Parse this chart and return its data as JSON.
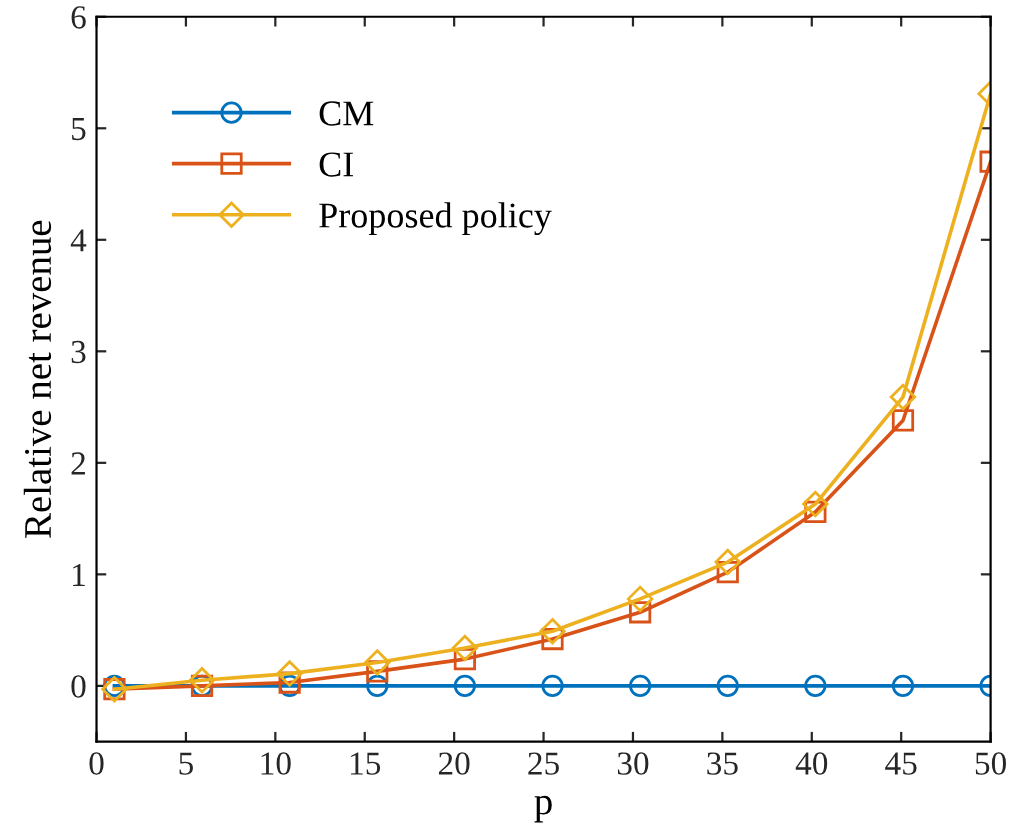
{
  "chart_data": {
    "type": "line",
    "xlabel": "p",
    "ylabel": "Relative net revenue",
    "x": [
      1,
      5.9,
      10.8,
      15.7,
      20.6,
      25.5,
      30.4,
      35.3,
      40.2,
      45.1,
      50
    ],
    "series": [
      {
        "name": "CM",
        "color": "#0072bd",
        "marker": "circle",
        "values": [
          0,
          0,
          0,
          0,
          0,
          0,
          0,
          0,
          0,
          0,
          0
        ]
      },
      {
        "name": "CI",
        "color": "#d95319",
        "marker": "square",
        "values": [
          -0.03,
          0.0,
          0.03,
          0.13,
          0.24,
          0.42,
          0.66,
          1.02,
          1.56,
          2.38,
          4.7
        ]
      },
      {
        "name": "Proposed policy",
        "color": "#edb120",
        "marker": "diamond",
        "values": [
          -0.03,
          0.05,
          0.11,
          0.21,
          0.34,
          0.49,
          0.78,
          1.11,
          1.63,
          2.59,
          5.31
        ]
      }
    ],
    "xlim": [
      0,
      50
    ],
    "ylim": [
      -0.5,
      6
    ],
    "xticks": [
      0,
      5,
      10,
      15,
      20,
      25,
      30,
      35,
      40,
      45,
      50
    ],
    "yticks": [
      0,
      1,
      2,
      3,
      4,
      5,
      6
    ],
    "grid": false,
    "legend": "top left",
    "line_style": "solid"
  }
}
